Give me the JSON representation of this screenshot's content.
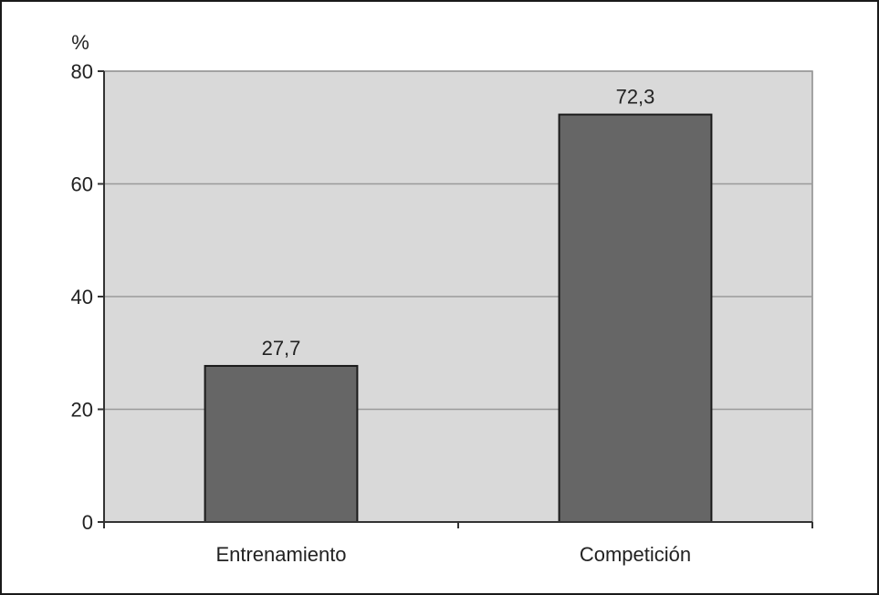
{
  "chart_data": {
    "type": "bar",
    "title": "",
    "ylabel": "%",
    "xlabel": "",
    "categories": [
      "Entrenamiento",
      "Competición"
    ],
    "values": [
      27.7,
      72.3
    ],
    "value_labels": [
      "27,7",
      "72,3"
    ],
    "ylim": [
      0,
      80
    ],
    "yticks": [
      0,
      20,
      40,
      60,
      80
    ],
    "ytick_labels": [
      "0",
      "20",
      "40",
      "60",
      "80"
    ],
    "grid": true,
    "legend": "none",
    "colors": {
      "plot_background": "#d9d9d9",
      "bar_fill": "#666666",
      "bar_stroke": "#1a1a1a",
      "gridline": "#9a9a9a",
      "axis": "#333333"
    }
  }
}
